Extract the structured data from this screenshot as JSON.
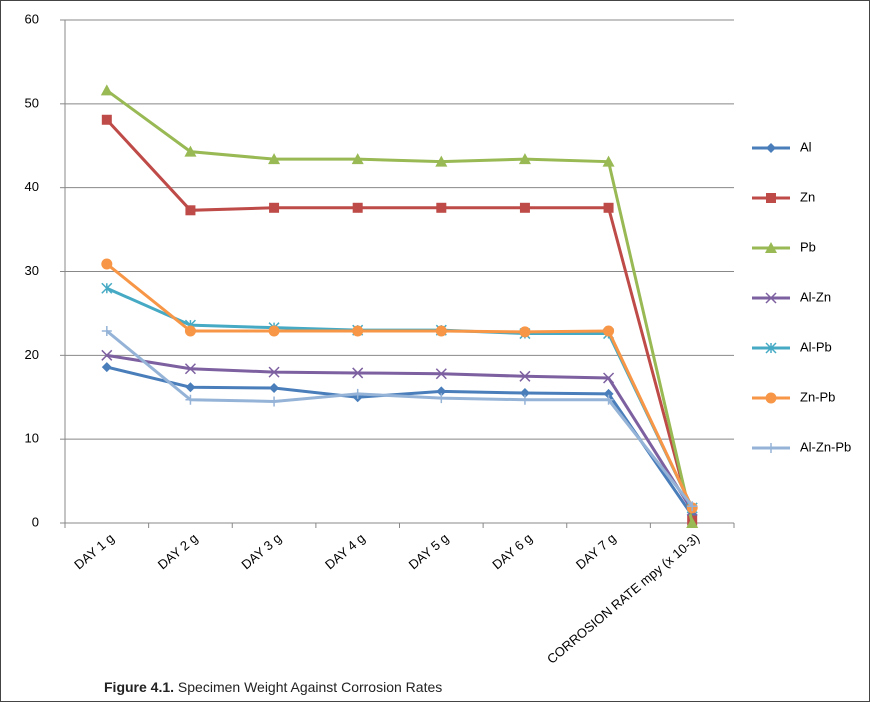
{
  "chart_data": {
    "type": "line",
    "categories": [
      "DAY 1 g",
      "DAY 2 g",
      "DAY 3 g",
      "DAY 4 g",
      "DAY 5 g",
      "DAY 6 g",
      "DAY 7 g",
      "CORROSION RATE mpy (x 10-3)"
    ],
    "series": [
      {
        "name": "Al",
        "color": "#4a7ebb",
        "marker": "diamond",
        "values": [
          18.6,
          16.2,
          16.1,
          15.0,
          15.7,
          15.5,
          15.4,
          0.9
        ]
      },
      {
        "name": "Zn",
        "color": "#be4b48",
        "marker": "square",
        "values": [
          48.1,
          37.3,
          37.6,
          37.6,
          37.6,
          37.6,
          37.6,
          0.3
        ]
      },
      {
        "name": "Pb",
        "color": "#98b954",
        "marker": "triangle",
        "values": [
          51.6,
          44.3,
          43.4,
          43.4,
          43.1,
          43.4,
          43.1,
          0
        ]
      },
      {
        "name": "Al-Zn",
        "color": "#7d60a0",
        "marker": "cross",
        "values": [
          20.0,
          18.4,
          18.0,
          17.9,
          17.8,
          17.5,
          17.3,
          1.5
        ]
      },
      {
        "name": "Al-Pb",
        "color": "#46aac5",
        "marker": "star",
        "values": [
          28.0,
          23.6,
          23.3,
          23.0,
          23.0,
          22.6,
          22.6,
          1.8
        ]
      },
      {
        "name": "Zn-Pb",
        "color": "#f79646",
        "marker": "circle",
        "values": [
          30.9,
          22.9,
          22.9,
          22.9,
          22.9,
          22.8,
          22.9,
          1.8
        ]
      },
      {
        "name": "Al-Zn-Pb",
        "color": "#95b3d7",
        "marker": "plus",
        "values": [
          22.9,
          14.7,
          14.5,
          15.4,
          14.9,
          14.7,
          14.7,
          2.0
        ]
      }
    ],
    "ylim": [
      0,
      60
    ],
    "yticks": [
      0,
      10,
      20,
      30,
      40,
      50,
      60
    ],
    "grid": true,
    "legend": "right",
    "caption_label": "Figure 4.1.",
    "caption_text": "Specimen Weight Against Corrosion Rates"
  }
}
